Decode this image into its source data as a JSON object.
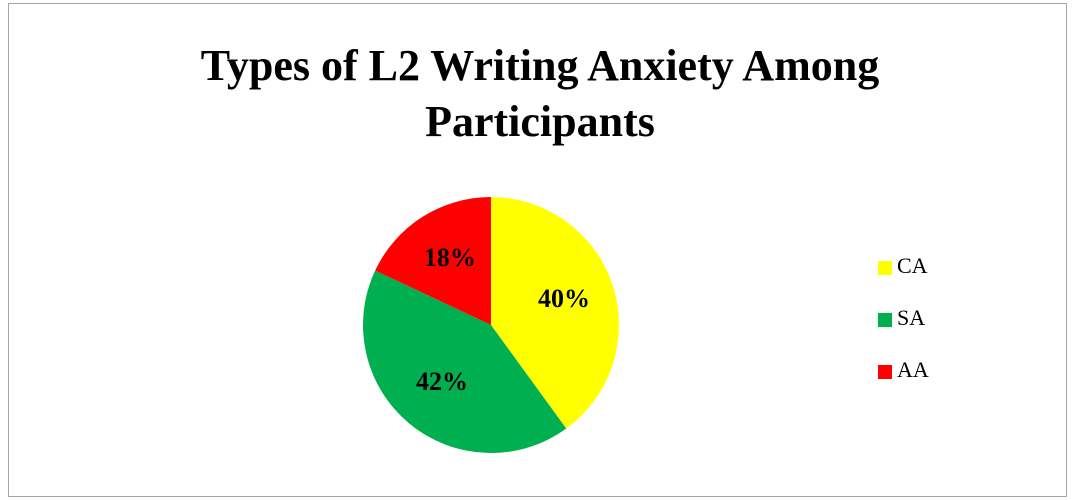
{
  "chart_data": {
    "type": "pie",
    "title": "Types of L2 Writing Anxiety Among Participants",
    "categories": [
      "CA",
      "SA",
      "AA"
    ],
    "values": [
      40,
      42,
      18
    ],
    "value_labels": [
      "40%",
      "42%",
      "18%"
    ],
    "colors": [
      "#ffff00",
      "#00b050",
      "#ff0000"
    ],
    "legend": "right"
  }
}
